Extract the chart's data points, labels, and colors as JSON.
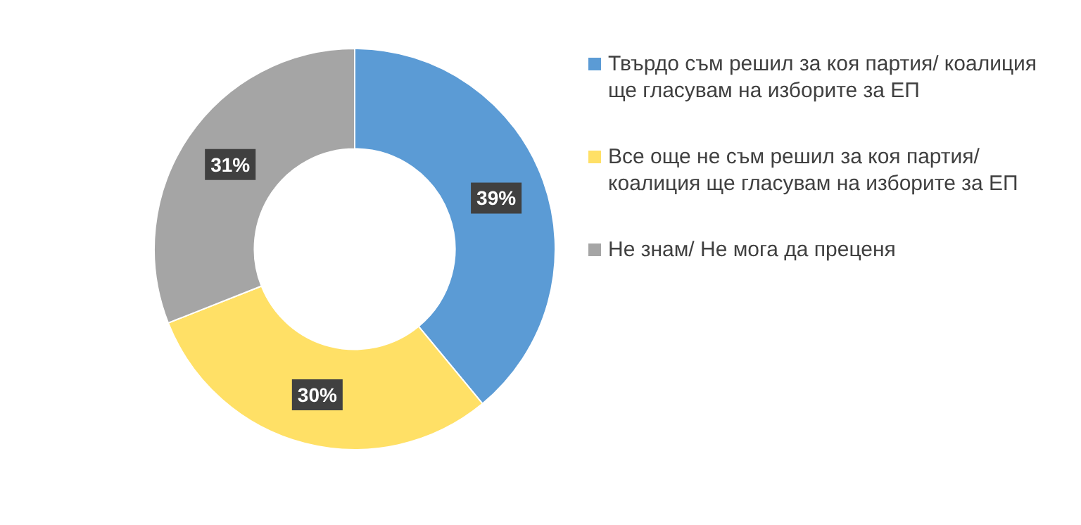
{
  "chart_data": {
    "type": "donut",
    "categories": [
      "Твърдо съм решил за коя партия/ коалиция ще гласувам на изборите за ЕП",
      "Все още не съм решил за коя партия/ коалиция ще гласувам на изборите за ЕП",
      "Не знам/ Не мога да преценя"
    ],
    "values": [
      39,
      30,
      31
    ],
    "colors": [
      "#5b9bd5",
      "#ffe066",
      "#a5a5a5"
    ],
    "value_labels": [
      "39%",
      "30%",
      "31%"
    ],
    "legend": "right"
  }
}
